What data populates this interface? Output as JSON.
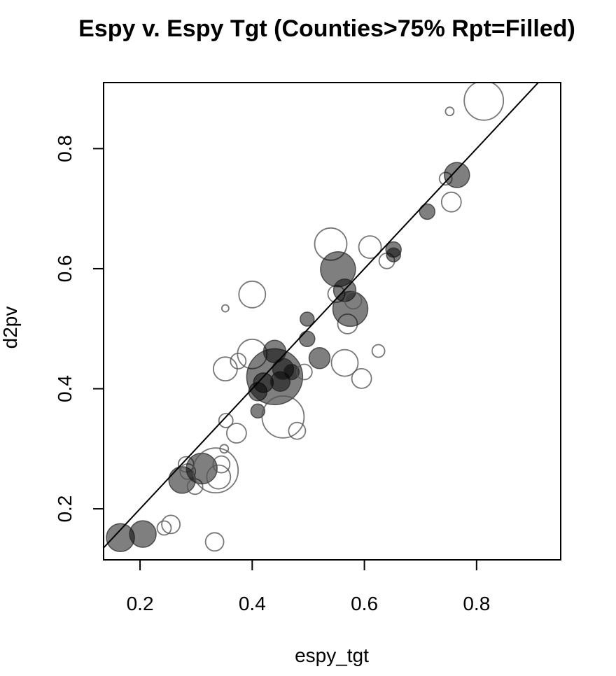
{
  "chart_data": {
    "type": "scatter",
    "title": "Espy v. Espy Tgt (Counties>75% Rpt=Filled)",
    "xlabel": "espy_tgt",
    "ylabel": "d2pv",
    "xlim": [
      0.135,
      0.95
    ],
    "ylim": [
      0.115,
      0.91
    ],
    "xticks": [
      "0.2",
      "0.4",
      "0.6",
      "0.8"
    ],
    "yticks": [
      "0.2",
      "0.4",
      "0.6",
      "0.8"
    ],
    "grid": false,
    "reference_line": {
      "intercept": 0,
      "slope": 1
    },
    "filled_color": "#000000",
    "filled_opacity": 0.5,
    "open_stroke": "#555555",
    "points": [
      {
        "x": 0.165,
        "y": 0.152,
        "r": 20,
        "filled": true
      },
      {
        "x": 0.205,
        "y": 0.158,
        "r": 19,
        "filled": true
      },
      {
        "x": 0.243,
        "y": 0.168,
        "r": 10,
        "filled": false
      },
      {
        "x": 0.255,
        "y": 0.174,
        "r": 13,
        "filled": false
      },
      {
        "x": 0.275,
        "y": 0.248,
        "r": 19,
        "filled": true
      },
      {
        "x": 0.282,
        "y": 0.274,
        "r": 11,
        "filled": false
      },
      {
        "x": 0.285,
        "y": 0.262,
        "r": 11,
        "filled": false
      },
      {
        "x": 0.298,
        "y": 0.237,
        "r": 11,
        "filled": false
      },
      {
        "x": 0.31,
        "y": 0.267,
        "r": 22,
        "filled": true
      },
      {
        "x": 0.335,
        "y": 0.264,
        "r": 32,
        "filled": false
      },
      {
        "x": 0.34,
        "y": 0.253,
        "r": 17,
        "filled": false
      },
      {
        "x": 0.345,
        "y": 0.274,
        "r": 12,
        "filled": false
      },
      {
        "x": 0.333,
        "y": 0.145,
        "r": 13,
        "filled": false
      },
      {
        "x": 0.35,
        "y": 0.3,
        "r": 6,
        "filled": false
      },
      {
        "x": 0.353,
        "y": 0.347,
        "r": 10,
        "filled": false
      },
      {
        "x": 0.372,
        "y": 0.326,
        "r": 14,
        "filled": false
      },
      {
        "x": 0.352,
        "y": 0.433,
        "r": 17,
        "filled": false
      },
      {
        "x": 0.352,
        "y": 0.534,
        "r": 5,
        "filled": false
      },
      {
        "x": 0.375,
        "y": 0.446,
        "r": 11,
        "filled": false
      },
      {
        "x": 0.4,
        "y": 0.458,
        "r": 21,
        "filled": false
      },
      {
        "x": 0.41,
        "y": 0.363,
        "r": 10,
        "filled": true
      },
      {
        "x": 0.41,
        "y": 0.395,
        "r": 13,
        "filled": true
      },
      {
        "x": 0.42,
        "y": 0.41,
        "r": 14,
        "filled": true
      },
      {
        "x": 0.44,
        "y": 0.42,
        "r": 40,
        "filled": true
      },
      {
        "x": 0.44,
        "y": 0.462,
        "r": 16,
        "filled": true
      },
      {
        "x": 0.45,
        "y": 0.412,
        "r": 14,
        "filled": true
      },
      {
        "x": 0.455,
        "y": 0.433,
        "r": 15,
        "filled": true
      },
      {
        "x": 0.455,
        "y": 0.353,
        "r": 30,
        "filled": false
      },
      {
        "x": 0.47,
        "y": 0.428,
        "r": 11,
        "filled": true
      },
      {
        "x": 0.48,
        "y": 0.33,
        "r": 12,
        "filled": false
      },
      {
        "x": 0.493,
        "y": 0.428,
        "r": 11,
        "filled": false
      },
      {
        "x": 0.498,
        "y": 0.483,
        "r": 11,
        "filled": true
      },
      {
        "x": 0.498,
        "y": 0.516,
        "r": 10,
        "filled": true
      },
      {
        "x": 0.4,
        "y": 0.557,
        "r": 19,
        "filled": false
      },
      {
        "x": 0.52,
        "y": 0.451,
        "r": 15,
        "filled": true
      },
      {
        "x": 0.54,
        "y": 0.641,
        "r": 23,
        "filled": false
      },
      {
        "x": 0.55,
        "y": 0.558,
        "r": 12,
        "filled": false
      },
      {
        "x": 0.553,
        "y": 0.599,
        "r": 25,
        "filled": true
      },
      {
        "x": 0.565,
        "y": 0.564,
        "r": 16,
        "filled": true
      },
      {
        "x": 0.565,
        "y": 0.443,
        "r": 19,
        "filled": false
      },
      {
        "x": 0.57,
        "y": 0.508,
        "r": 14,
        "filled": false
      },
      {
        "x": 0.575,
        "y": 0.533,
        "r": 25,
        "filled": true
      },
      {
        "x": 0.58,
        "y": 0.547,
        "r": 12,
        "filled": false
      },
      {
        "x": 0.595,
        "y": 0.417,
        "r": 14,
        "filled": false
      },
      {
        "x": 0.61,
        "y": 0.636,
        "r": 16,
        "filled": false
      },
      {
        "x": 0.625,
        "y": 0.463,
        "r": 9,
        "filled": false
      },
      {
        "x": 0.64,
        "y": 0.613,
        "r": 11,
        "filled": false
      },
      {
        "x": 0.652,
        "y": 0.632,
        "r": 11,
        "filled": true
      },
      {
        "x": 0.652,
        "y": 0.623,
        "r": 10,
        "filled": true
      },
      {
        "x": 0.712,
        "y": 0.695,
        "r": 11,
        "filled": true
      },
      {
        "x": 0.745,
        "y": 0.75,
        "r": 9,
        "filled": false
      },
      {
        "x": 0.755,
        "y": 0.711,
        "r": 14,
        "filled": false
      },
      {
        "x": 0.765,
        "y": 0.756,
        "r": 18,
        "filled": true
      },
      {
        "x": 0.752,
        "y": 0.862,
        "r": 6,
        "filled": false
      },
      {
        "x": 0.813,
        "y": 0.88,
        "r": 28,
        "filled": false
      }
    ]
  }
}
